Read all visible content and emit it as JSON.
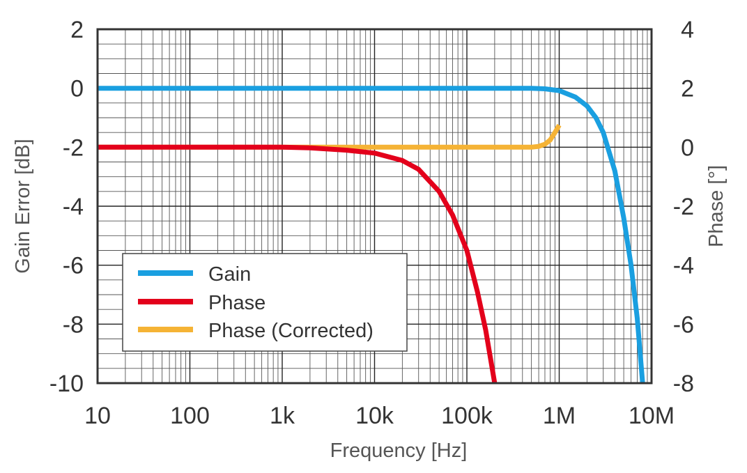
{
  "chart_data": {
    "type": "line",
    "xscale": "log",
    "xlabel": "Frequency [Hz]",
    "ylabel_left": "Gain Error [dB]",
    "ylabel_right": "Phase [°]",
    "xlim": [
      10,
      10000000
    ],
    "ylim_left": [
      -10,
      2
    ],
    "ylim_right": [
      -8,
      4
    ],
    "x_ticks": [
      {
        "value": 10,
        "label": "10"
      },
      {
        "value": 100,
        "label": "100"
      },
      {
        "value": 1000,
        "label": "1k"
      },
      {
        "value": 10000,
        "label": "10k"
      },
      {
        "value": 100000,
        "label": "100k"
      },
      {
        "value": 1000000,
        "label": "1M"
      },
      {
        "value": 10000000,
        "label": "10M"
      }
    ],
    "y_left_ticks": [
      {
        "value": 2,
        "label": "2"
      },
      {
        "value": 0,
        "label": "0"
      },
      {
        "value": -2,
        "label": "-2"
      },
      {
        "value": -4,
        "label": "-4"
      },
      {
        "value": -6,
        "label": "-6"
      },
      {
        "value": -8,
        "label": "-8"
      },
      {
        "value": -10,
        "label": "-10"
      }
    ],
    "y_right_ticks": [
      {
        "value": 4,
        "label": "4"
      },
      {
        "value": 2,
        "label": "2"
      },
      {
        "value": 0,
        "label": "0"
      },
      {
        "value": -2,
        "label": "-2"
      },
      {
        "value": -4,
        "label": "-4"
      },
      {
        "value": -6,
        "label": "-6"
      },
      {
        "value": -8,
        "label": "-8"
      }
    ],
    "grid": true,
    "legend_position": "lower-left",
    "series": [
      {
        "name": "Gain",
        "axis": "left",
        "color": "#1a9fe0",
        "points": [
          [
            10,
            0
          ],
          [
            100000,
            0
          ],
          [
            500000,
            0
          ],
          [
            700000,
            -0.02
          ],
          [
            1000000,
            -0.08
          ],
          [
            1500000,
            -0.3
          ],
          [
            2000000,
            -0.6
          ],
          [
            2500000,
            -1.0
          ],
          [
            3000000,
            -1.5
          ],
          [
            4000000,
            -2.8
          ],
          [
            5000000,
            -4.4
          ],
          [
            6000000,
            -6.0
          ],
          [
            7000000,
            -7.8
          ],
          [
            8000000,
            -10
          ]
        ]
      },
      {
        "name": "Phase",
        "axis": "right",
        "color": "#e3001b",
        "points": [
          [
            10,
            0
          ],
          [
            1000,
            0
          ],
          [
            2000,
            -0.02
          ],
          [
            5000,
            -0.1
          ],
          [
            10000,
            -0.2
          ],
          [
            20000,
            -0.45
          ],
          [
            30000,
            -0.75
          ],
          [
            50000,
            -1.5
          ],
          [
            70000,
            -2.3
          ],
          [
            100000,
            -3.5
          ],
          [
            130000,
            -4.9
          ],
          [
            160000,
            -6.2
          ],
          [
            200000,
            -8
          ]
        ]
      },
      {
        "name": "Phase (Corrected)",
        "axis": "right",
        "color": "#f5b335",
        "points": [
          [
            10,
            0
          ],
          [
            500000,
            0
          ],
          [
            600000,
            0.03
          ],
          [
            700000,
            0.1
          ],
          [
            800000,
            0.25
          ],
          [
            900000,
            0.5
          ],
          [
            1000000,
            0.75
          ]
        ]
      }
    ]
  }
}
